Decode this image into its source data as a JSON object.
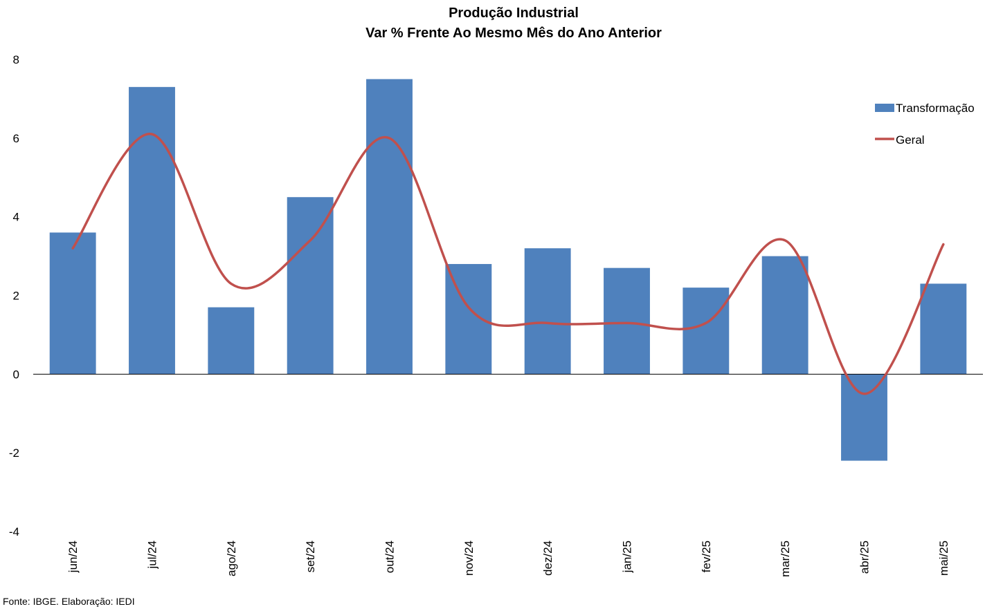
{
  "chart_data": {
    "type": "bar",
    "title": "Produção Industrial",
    "subtitle": "Var % Frente Ao Mesmo Mês do Ano Anterior",
    "xlabel": "",
    "ylabel": "",
    "categories": [
      "jun/24",
      "jul/24",
      "ago/24",
      "set/24",
      "out/24",
      "nov/24",
      "dez/24",
      "jan/25",
      "fev/25",
      "mar/25",
      "abr/25",
      "mai/25"
    ],
    "ylim": [
      -4,
      8
    ],
    "yticks": [
      -4,
      -2,
      0,
      2,
      4,
      6,
      8
    ],
    "grid": false,
    "legend_position": "top-right",
    "series": [
      {
        "name": "Transformação",
        "type": "bar",
        "color": "#4f81bd",
        "values": [
          3.6,
          7.3,
          1.7,
          4.5,
          7.5,
          2.8,
          3.2,
          2.7,
          2.2,
          3.0,
          -2.2,
          2.3
        ]
      },
      {
        "name": "Geral",
        "type": "line",
        "smooth": true,
        "color": "#c0504d",
        "values": [
          3.2,
          6.1,
          2.3,
          3.4,
          6.0,
          1.7,
          1.3,
          1.3,
          1.3,
          3.4,
          -0.5,
          3.3
        ]
      }
    ]
  },
  "footer": {
    "source": "Fonte: IBGE. Elaboração: IEDI"
  }
}
